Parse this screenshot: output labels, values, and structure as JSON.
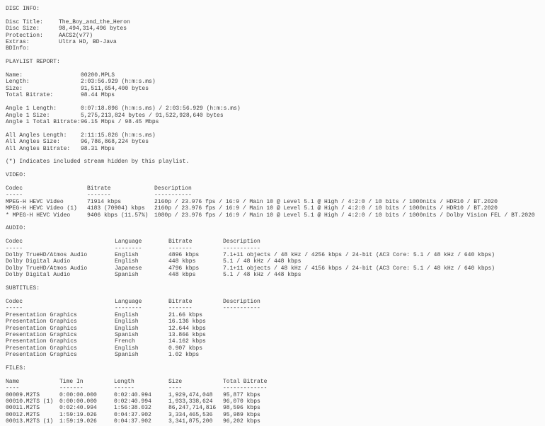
{
  "disc_info": {
    "heading": "DISC INFO:",
    "fields": [
      {
        "label": "Disc Title:",
        "value": "The_Boy_and_the_Heron"
      },
      {
        "label": "Disc Size:",
        "value": "98,494,314,496 bytes"
      },
      {
        "label": "Protection:",
        "value": "AACS2(v77)"
      },
      {
        "label": "Extras:",
        "value": "Ultra HD, BD-Java"
      },
      {
        "label": "BDInfo:",
        "value": ""
      }
    ]
  },
  "playlist": {
    "heading": "PLAYLIST REPORT:",
    "general": [
      {
        "label": "Name:",
        "value": "00200.MPLS"
      },
      {
        "label": "Length:",
        "value": "2:03:56.929 (h:m:s.ms)"
      },
      {
        "label": "Size:",
        "value": "91,511,654,400 bytes"
      },
      {
        "label": "Total Bitrate:",
        "value": "98.44 Mbps"
      }
    ],
    "angle1": [
      {
        "label": "Angle 1 Length:",
        "value": "0:07:18.896 (h:m:s.ms) / 2:03:56.929 (h:m:s.ms)"
      },
      {
        "label": "Angle 1 Size:",
        "value": "5,275,213,824 bytes / 91,522,928,640 bytes"
      },
      {
        "label": "Angle 1 Total Bitrate:",
        "value": "96.15 Mbps / 98.45 Mbps"
      }
    ],
    "all_angles": [
      {
        "label": "All Angles Length:",
        "value": "2:11:15.826 (h:m:s.ms)"
      },
      {
        "label": "All Angles Size:",
        "value": "96,786,868,224 bytes"
      },
      {
        "label": "All Angles Bitrate:",
        "value": "98.31 Mbps"
      }
    ],
    "note": "(*) Indicates included stream hidden by this playlist."
  },
  "video": {
    "heading": "VIDEO:",
    "headers": {
      "codec": "Codec",
      "bitrate": "Bitrate",
      "description": "Description"
    },
    "underline": {
      "codec": "-----",
      "bitrate": "-------",
      "description": "-----------"
    },
    "rows": [
      {
        "codec": "MPEG-H HEVC Video",
        "bitrate": "71914 kbps",
        "description": "2160p / 23.976 fps / 16:9 / Main 10 @ Level 5.1 @ High / 4:2:0 / 10 bits / 1000nits / HDR10 / BT.2020"
      },
      {
        "codec": "MPEG-H HEVC Video (1)",
        "bitrate": "4183 (70904) kbps",
        "description": "2160p / 23.976 fps / 16:9 / Main 10 @ Level 5.1 @ High / 4:2:0 / 10 bits / 1000nits / HDR10 / BT.2020"
      },
      {
        "codec": "* MPEG-H HEVC Video",
        "bitrate": "9406 kbps (11.57%)",
        "description": "1080p / 23.976 fps / 16:9 / Main 10 @ Level 5.1 @ High / 4:2:0 / 10 bits / 1000nits / Dolby Vision FEL / BT.2020"
      }
    ]
  },
  "audio": {
    "heading": "AUDIO:",
    "headers": {
      "codec": "Codec",
      "language": "Language",
      "bitrate": "Bitrate",
      "description": "Description"
    },
    "underline": {
      "codec": "-----",
      "language": "--------",
      "bitrate": "-------",
      "description": "-----------"
    },
    "rows": [
      {
        "codec": "Dolby TrueHD/Atmos Audio",
        "language": "English",
        "bitrate": "4896 kbps",
        "description": "7.1+11 objects / 48 kHz / 4256 kbps / 24-bit (AC3 Core: 5.1 / 48 kHz / 640 kbps)"
      },
      {
        "codec": "Dolby Digital Audio",
        "language": "English",
        "bitrate": "448 kbps",
        "description": "5.1 / 48 kHz / 448 kbps"
      },
      {
        "codec": "Dolby TrueHD/Atmos Audio",
        "language": "Japanese",
        "bitrate": "4796 kbps",
        "description": "7.1+11 objects / 48 kHz / 4156 kbps / 24-bit (AC3 Core: 5.1 / 48 kHz / 640 kbps)"
      },
      {
        "codec": "Dolby Digital Audio",
        "language": "Spanish",
        "bitrate": "448 kbps",
        "description": "5.1 / 48 kHz / 448 kbps"
      }
    ]
  },
  "subtitles": {
    "heading": "SUBTITLES:",
    "headers": {
      "codec": "Codec",
      "language": "Language",
      "bitrate": "Bitrate",
      "description": "Description"
    },
    "underline": {
      "codec": "-----",
      "language": "--------",
      "bitrate": "-------",
      "description": "-----------"
    },
    "rows": [
      {
        "codec": "Presentation Graphics",
        "language": "English",
        "bitrate": "21.66 kbps",
        "description": ""
      },
      {
        "codec": "Presentation Graphics",
        "language": "English",
        "bitrate": "16.136 kbps",
        "description": ""
      },
      {
        "codec": "Presentation Graphics",
        "language": "English",
        "bitrate": "12.644 kbps",
        "description": ""
      },
      {
        "codec": "Presentation Graphics",
        "language": "Spanish",
        "bitrate": "13.866 kbps",
        "description": ""
      },
      {
        "codec": "Presentation Graphics",
        "language": "French",
        "bitrate": "14.162 kbps",
        "description": ""
      },
      {
        "codec": "Presentation Graphics",
        "language": "English",
        "bitrate": "0.907 kbps",
        "description": ""
      },
      {
        "codec": "Presentation Graphics",
        "language": "Spanish",
        "bitrate": "1.02 kbps",
        "description": ""
      }
    ]
  },
  "files": {
    "heading": "FILES:",
    "headers": {
      "name": "Name",
      "time_in": "Time In",
      "length": "Length",
      "size": "Size",
      "total_bitrate": "Total Bitrate"
    },
    "underline": {
      "name": "----",
      "time_in": "-------",
      "length": "------",
      "size": "----",
      "total_bitrate": "-------------"
    },
    "rows": [
      {
        "name": "00009.M2TS",
        "time_in": "0:00:00.000",
        "length": "0:02:40.994",
        "size": "1,929,474,048",
        "total_bitrate": "95,877 kbps"
      },
      {
        "name": "00010.M2TS (1)",
        "time_in": "0:00:00.000",
        "length": "0:02:40.994",
        "size": "1,933,338,624",
        "total_bitrate": "96,070 kbps"
      },
      {
        "name": "00011.M2TS",
        "time_in": "0:02:40.994",
        "length": "1:56:38.032",
        "size": "86,247,714,816",
        "total_bitrate": "98,596 kbps"
      },
      {
        "name": "00012.M2TS",
        "time_in": "1:59:19.026",
        "length": "0:04:37.902",
        "size": "3,334,465,536",
        "total_bitrate": "95,989 kbps"
      },
      {
        "name": "00013.M2TS (1)",
        "time_in": "1:59:19.026",
        "length": "0:04:37.902",
        "size": "3,341,875,200",
        "total_bitrate": "96,202 kbps"
      }
    ]
  }
}
